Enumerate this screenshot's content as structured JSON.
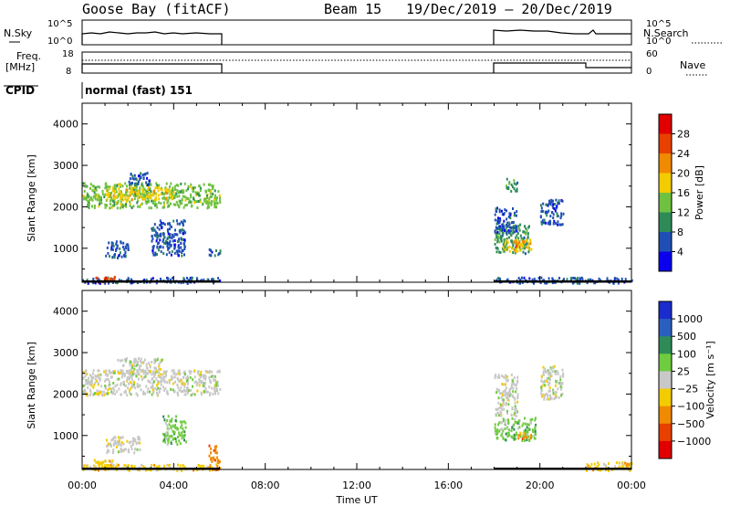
{
  "header": {
    "station": "Goose Bay (fitACF)",
    "beam": "Beam 15",
    "date_range": "19/Dec/2019 – 20/Dec/2019"
  },
  "panel_labels": {
    "nsky": "N.Sky",
    "nsearch": "N.Search",
    "freq_line1": "Freq.",
    "freq_line2": "[MHz]",
    "nave": "Nave",
    "cpid": "CPID",
    "cpid_value": "normal (fast) 151"
  },
  "noise_ticks": {
    "left": [
      "10^5",
      "10^0"
    ],
    "right": [
      "10^5",
      "10^0"
    ]
  },
  "freq_ticks": {
    "left": [
      "18",
      "8"
    ],
    "right": [
      "60",
      "0"
    ]
  },
  "chart_data": [
    {
      "type": "heatmap",
      "name": "power",
      "ylabel": "Slant Range [km]",
      "xlabel": "Time UT",
      "xticks": [
        "00:00",
        "04:00",
        "08:00",
        "12:00",
        "16:00",
        "20:00",
        "00:00"
      ],
      "xlim_hours": [
        0,
        24
      ],
      "yticks": [
        1000,
        2000,
        3000,
        4000
      ],
      "ylim_km": [
        180,
        4500
      ],
      "colorbar": {
        "label": "Power [dB]",
        "ticks": [
          "4",
          "8",
          "12",
          "16",
          "20",
          "24",
          "28"
        ],
        "colors": [
          "#0a00ee",
          "#1f4fb5",
          "#2e8b57",
          "#6fc140",
          "#f2cc00",
          "#f08a00",
          "#e84000",
          "#e00000"
        ]
      },
      "data_periods_hours": [
        [
          0,
          6
        ],
        [
          18,
          24
        ]
      ],
      "regions": [
        {
          "t": [
            0.0,
            6.0
          ],
          "r": [
            2000,
            2600
          ],
          "level": 3
        },
        {
          "t": [
            1.0,
            4.0
          ],
          "r": [
            2200,
            2500
          ],
          "level": 4
        },
        {
          "t": [
            2.0,
            3.0
          ],
          "r": [
            2550,
            2850
          ],
          "level": 1
        },
        {
          "t": [
            0.0,
            6.0
          ],
          "r": [
            180,
            320
          ],
          "level": 1
        },
        {
          "t": [
            0.5,
            1.4
          ],
          "r": [
            200,
            330
          ],
          "level": 6
        },
        {
          "t": [
            1.0,
            2.0
          ],
          "r": [
            800,
            1200
          ],
          "level": 1
        },
        {
          "t": [
            3.0,
            4.5
          ],
          "r": [
            850,
            1700
          ],
          "level": 1
        },
        {
          "t": [
            5.5,
            6.0
          ],
          "r": [
            850,
            1000
          ],
          "level": 1
        },
        {
          "t": [
            18.0,
            19.5
          ],
          "r": [
            900,
            1600
          ],
          "level": 2
        },
        {
          "t": [
            18.3,
            19.6
          ],
          "r": [
            950,
            1250
          ],
          "level": 4
        },
        {
          "t": [
            18.8,
            19.4
          ],
          "r": [
            1050,
            1200
          ],
          "level": 5
        },
        {
          "t": [
            18.0,
            19.0
          ],
          "r": [
            1400,
            2000
          ],
          "level": 1
        },
        {
          "t": [
            18.5,
            19.0
          ],
          "r": [
            2400,
            2700
          ],
          "level": 2
        },
        {
          "t": [
            20.0,
            21.0
          ],
          "r": [
            1600,
            2200
          ],
          "level": 1
        },
        {
          "t": [
            18.0,
            24.0
          ],
          "r": [
            180,
            320
          ],
          "level": 1
        }
      ]
    },
    {
      "type": "heatmap",
      "name": "velocity",
      "ylabel": "Slant Range [km]",
      "xlabel": "Time UT",
      "xticks": [
        "00:00",
        "04:00",
        "08:00",
        "12:00",
        "16:00",
        "20:00",
        "00:00"
      ],
      "xlim_hours": [
        0,
        24
      ],
      "yticks": [
        1000,
        2000,
        3000,
        4000
      ],
      "ylim_km": [
        180,
        4500
      ],
      "colorbar": {
        "label": "Velocity [m s⁻¹]",
        "ticks": [
          "1000",
          "500",
          "100",
          "25",
          "−25",
          "−100",
          "−500",
          "−1000"
        ],
        "colors": [
          "#1a2ccc",
          "#2a5fc0",
          "#2e8b57",
          "#6fcc40",
          "#c8c8c8",
          "#f2cc00",
          "#f08a00",
          "#e84000",
          "#e00000"
        ]
      },
      "data_periods_hours": [
        [
          0,
          6
        ],
        [
          18,
          24
        ]
      ],
      "regions": [
        {
          "t": [
            0.0,
            6.0
          ],
          "r": [
            2000,
            2600
          ],
          "level": 4
        },
        {
          "t": [
            1.5,
            3.5
          ],
          "r": [
            2500,
            2900
          ],
          "level": 4
        },
        {
          "t": [
            0.0,
            6.0
          ],
          "r": [
            180,
            320
          ],
          "level": 5
        },
        {
          "t": [
            0.5,
            1.5
          ],
          "r": [
            200,
            450
          ],
          "level": 5
        },
        {
          "t": [
            1.0,
            2.5
          ],
          "r": [
            600,
            1000
          ],
          "level": 4
        },
        {
          "t": [
            3.5,
            4.5
          ],
          "r": [
            800,
            1500
          ],
          "level": 3
        },
        {
          "t": [
            5.5,
            6.0
          ],
          "r": [
            200,
            800
          ],
          "level": 6
        },
        {
          "t": [
            18.0,
            19.8
          ],
          "r": [
            900,
            1450
          ],
          "level": 3
        },
        {
          "t": [
            19.0,
            19.7
          ],
          "r": [
            950,
            1100
          ],
          "level": 6
        },
        {
          "t": [
            18.0,
            19.0
          ],
          "r": [
            1500,
            2500
          ],
          "level": 4
        },
        {
          "t": [
            20.0,
            21.0
          ],
          "r": [
            1900,
            2700
          ],
          "level": 4
        },
        {
          "t": [
            22.0,
            24.0
          ],
          "r": [
            180,
            380
          ],
          "level": 5
        }
      ]
    }
  ]
}
